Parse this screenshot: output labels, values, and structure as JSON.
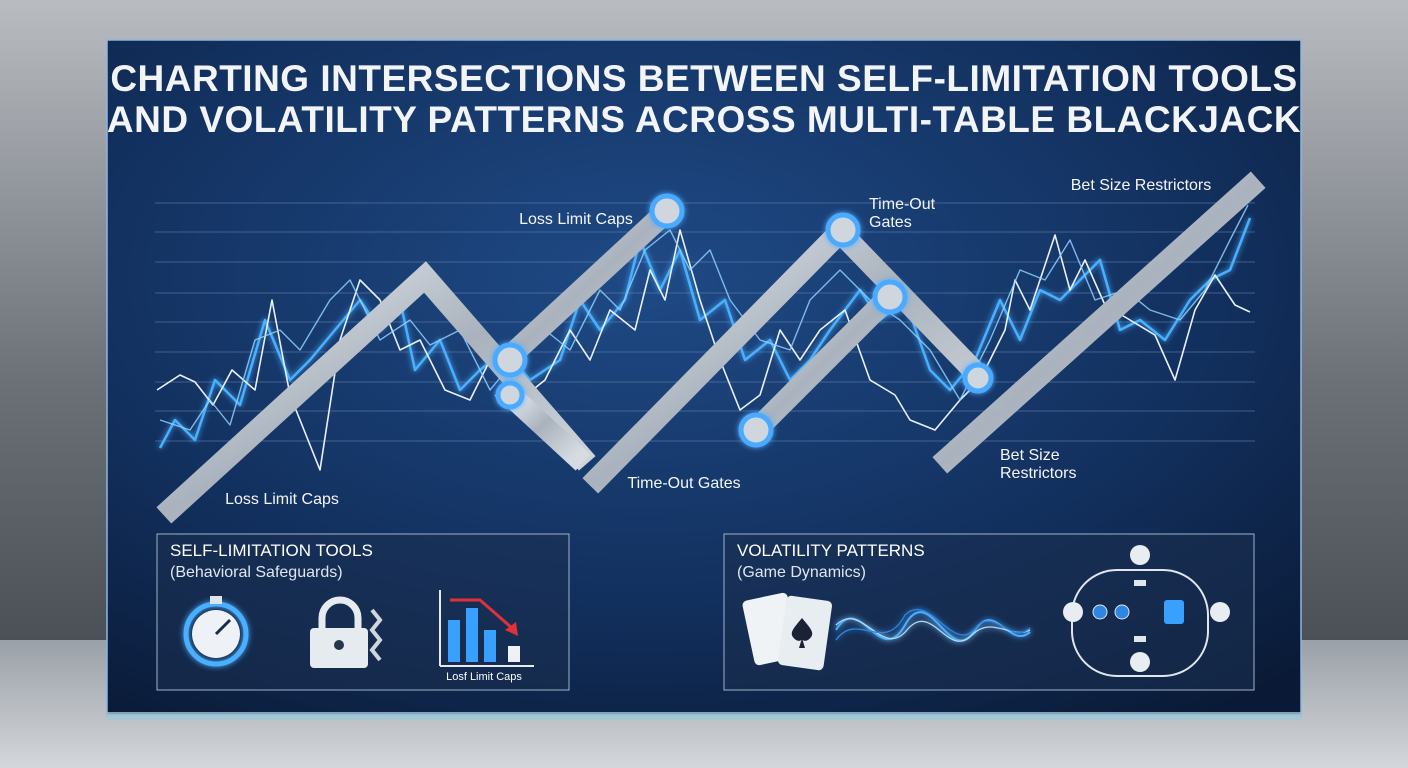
{
  "header": {
    "title_lines": [
      "CHARTING INTERSECTIONS BETWEEN SELF-LIMITATION TOOLS",
      "AND VOLATILITY PATTERNS ACROSS MULTI-TABLE BLACKJACK"
    ]
  },
  "chart_labels": {
    "top": [
      {
        "lines": [
          "Loss Limit Caps"
        ]
      },
      {
        "lines": [
          "Time-Out",
          "Gates"
        ]
      },
      {
        "lines": [
          "Bet Size Restrictors"
        ]
      }
    ],
    "bottom": [
      {
        "lines": [
          "Loss Limit Caps"
        ]
      },
      {
        "lines": [
          "Time-Out Gates"
        ]
      },
      {
        "lines": [
          "Bet Size",
          "Restrictors"
        ]
      }
    ]
  },
  "panels": [
    {
      "title": "SELF-LIMITATION TOOLS",
      "subtitle": "(Behavioral Safeguards)",
      "icon_caption": "Losf Limit Caps"
    },
    {
      "title": "VOLATILITY PATTERNS",
      "subtitle": "(Game Dynamics)"
    }
  ]
}
